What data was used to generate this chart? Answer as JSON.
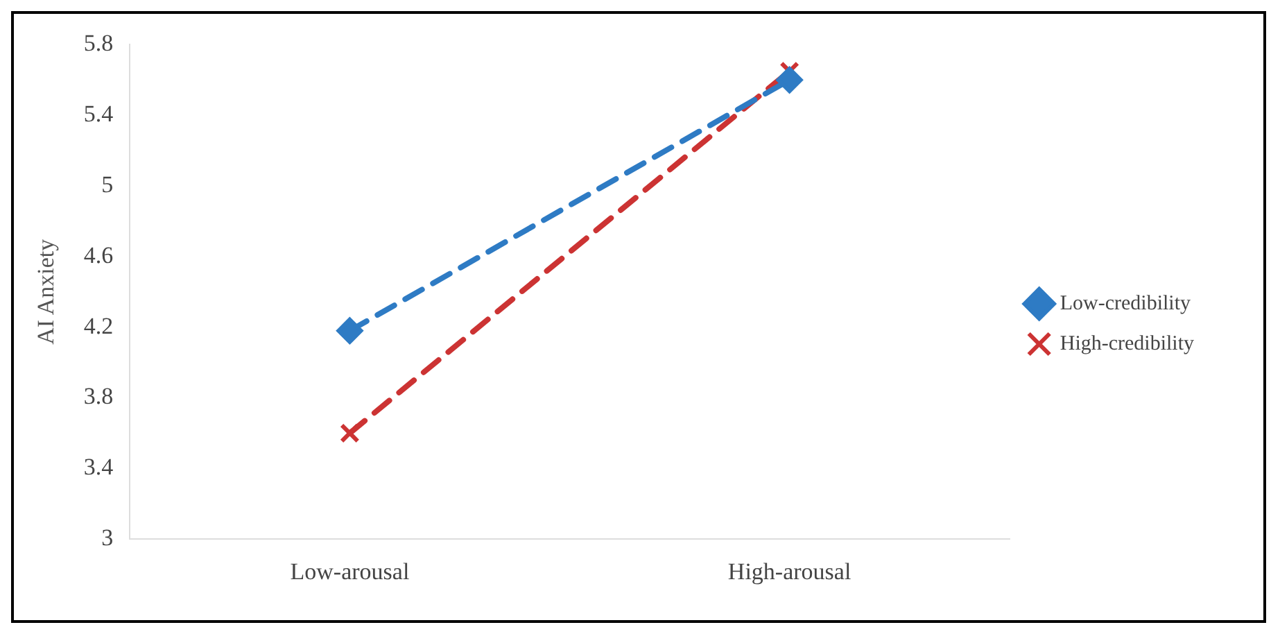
{
  "chart_data": {
    "type": "line",
    "ylabel": "AI Anxiety",
    "categories": [
      "Low-arousal",
      "High-arousal"
    ],
    "series": [
      {
        "name": "Low-credibility",
        "color": "#2e7bc4",
        "values": [
          4.18,
          5.6
        ],
        "marker": "diamond"
      },
      {
        "name": "High-credibility",
        "color": "#cc3333",
        "values": [
          3.6,
          5.65
        ],
        "marker": "cross"
      }
    ],
    "ylim": [
      3,
      5.8
    ],
    "yticks": [
      3,
      3.4,
      3.8,
      4.2,
      4.6,
      5,
      5.4,
      5.8
    ],
    "grid": false,
    "legend": "right",
    "line_style": "dashed"
  }
}
